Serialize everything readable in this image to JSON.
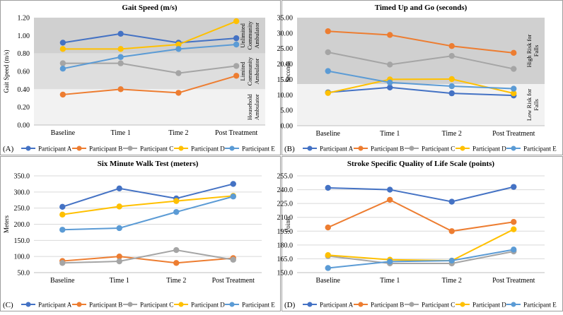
{
  "colors": {
    "Participant A": "#4472c4",
    "Participant B": "#ed7d31",
    "Participant C": "#a5a5a5",
    "Participant D": "#ffc000",
    "Participant E": "#5b9bd5",
    "band_dark": "#d0d0d0",
    "band_mid": "#dedede",
    "band_light": "#f2f2f2",
    "border": "#9e9e9e",
    "grid": "#d9d9d9"
  },
  "chart_data": [
    {
      "panel": "(A)",
      "type": "line",
      "title": "Gait Speed (m/s)",
      "ylabel": "Gait Speed (m/s)",
      "xlabel": "",
      "ylim": [
        0,
        1.2
      ],
      "yticks": [
        "0.00",
        "0.20",
        "0.40",
        "0.60",
        "0.80",
        "1.00",
        "1.20"
      ],
      "categories": [
        "Baseline",
        "Time 1",
        "Time 2",
        "Post Treatment"
      ],
      "bands": [
        {
          "from": 0.8,
          "to": 1.2,
          "tone": "band_dark",
          "label": "Unlimited Community Ambulator"
        },
        {
          "from": 0.4,
          "to": 0.8,
          "tone": "band_mid",
          "label": "Limited Community Ambulator"
        },
        {
          "from": 0.0,
          "to": 0.4,
          "tone": "band_light",
          "label": "Household Ambulator"
        }
      ],
      "series": [
        {
          "name": "Participant A",
          "values": [
            0.92,
            1.02,
            0.92,
            0.97
          ]
        },
        {
          "name": "Participant B",
          "values": [
            0.34,
            0.4,
            0.36,
            0.55
          ]
        },
        {
          "name": "Participant C",
          "values": [
            0.69,
            0.69,
            0.58,
            0.66
          ]
        },
        {
          "name": "Participant D",
          "values": [
            0.85,
            0.85,
            0.9,
            1.16
          ]
        },
        {
          "name": "Participant E",
          "values": [
            0.63,
            0.76,
            0.85,
            0.9
          ]
        }
      ]
    },
    {
      "panel": "(B)",
      "type": "line",
      "title": "Timed Up and Go (seconds)",
      "ylabel": "Seconds",
      "xlabel": "",
      "ylim": [
        0,
        35
      ],
      "yticks": [
        "0.00",
        "5.00",
        "10.00",
        "15.00",
        "20.00",
        "25.00",
        "30.00",
        "35.00"
      ],
      "categories": [
        "Baseline",
        "Time 1",
        "Time 2",
        "Post Treatment"
      ],
      "bands": [
        {
          "from": 13.5,
          "to": 35,
          "tone": "band_dark",
          "label": "High Risk for Falls"
        },
        {
          "from": 0,
          "to": 13.5,
          "tone": "band_light",
          "label": "Low Risk for Falls"
        }
      ],
      "series": [
        {
          "name": "Participant A",
          "values": [
            10.8,
            12.4,
            10.5,
            9.8
          ]
        },
        {
          "name": "Participant B",
          "values": [
            30.6,
            29.4,
            25.8,
            23.6
          ]
        },
        {
          "name": "Participant C",
          "values": [
            23.8,
            19.8,
            22.6,
            18.4
          ]
        },
        {
          "name": "Participant D",
          "values": [
            10.6,
            15.0,
            15.1,
            10.5
          ]
        },
        {
          "name": "Participant E",
          "values": [
            17.7,
            14.0,
            12.8,
            12.0
          ]
        }
      ]
    },
    {
      "panel": "(C)",
      "type": "line",
      "title": "Six Minute Walk Test (meters)",
      "ylabel": "Meters",
      "xlabel": "",
      "ylim": [
        50,
        350
      ],
      "yticks": [
        "50.0",
        "100.0",
        "150.0",
        "200.0",
        "250.0",
        "300.0",
        "350.0"
      ],
      "categories": [
        "Baseline",
        "Time 1",
        "Time 2",
        "Post Treatment"
      ],
      "bands": [],
      "series": [
        {
          "name": "Participant A",
          "values": [
            254,
            311,
            280,
            325
          ]
        },
        {
          "name": "Participant B",
          "values": [
            86,
            100,
            80,
            95
          ]
        },
        {
          "name": "Participant C",
          "values": [
            80,
            85,
            120,
            90
          ]
        },
        {
          "name": "Participant D",
          "values": [
            230,
            255,
            272,
            288
          ]
        },
        {
          "name": "Participant E",
          "values": [
            183,
            188,
            238,
            286
          ]
        }
      ]
    },
    {
      "panel": "(D)",
      "type": "line",
      "title": "Stroke Specific Quality of Life Scale (points)",
      "ylabel": "Points",
      "xlabel": "",
      "ylim": [
        150,
        255
      ],
      "yticks": [
        "150.0",
        "165.0",
        "180.0",
        "195.0",
        "210.0",
        "225.0",
        "240.0",
        "255.0"
      ],
      "categories": [
        "Baseline",
        "Time 1",
        "Time 2",
        "Post Treatment"
      ],
      "bands": [],
      "series": [
        {
          "name": "Participant A",
          "values": [
            242,
            240,
            227,
            243
          ]
        },
        {
          "name": "Participant B",
          "values": [
            199,
            229,
            195,
            205
          ]
        },
        {
          "name": "Participant C",
          "values": [
            168,
            160,
            160,
            173
          ]
        },
        {
          "name": "Participant D",
          "values": [
            169,
            164,
            163,
            197
          ]
        },
        {
          "name": "Participant E",
          "values": [
            155,
            162,
            163,
            175
          ]
        }
      ]
    }
  ]
}
